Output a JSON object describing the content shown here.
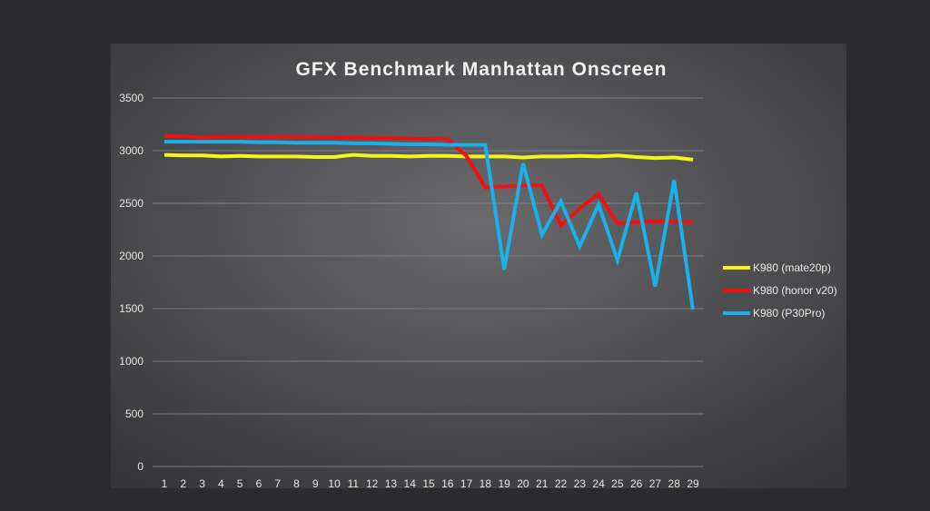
{
  "chart_data": {
    "type": "line",
    "title": "GFX Benchmark Manhattan Onscreen",
    "xlabel": "",
    "ylabel": "",
    "x": [
      1,
      2,
      3,
      4,
      5,
      6,
      7,
      8,
      9,
      10,
      11,
      12,
      13,
      14,
      15,
      16,
      17,
      18,
      19,
      20,
      21,
      22,
      23,
      24,
      25,
      26,
      27,
      28,
      29
    ],
    "ylim": [
      0,
      3500
    ],
    "yticks": [
      0,
      500,
      1000,
      1500,
      2000,
      2500,
      3000,
      3500
    ],
    "grid": true,
    "legend_position": "right",
    "series": [
      {
        "name": "K980 (mate20p)",
        "color": "#f5f51a",
        "values": [
          2960,
          2955,
          2955,
          2945,
          2950,
          2945,
          2945,
          2945,
          2940,
          2940,
          2960,
          2950,
          2950,
          2945,
          2950,
          2950,
          2945,
          2945,
          2945,
          2935,
          2945,
          2945,
          2950,
          2945,
          2955,
          2940,
          2930,
          2935,
          2915
        ]
      },
      {
        "name": "K980 (honor v20)",
        "color": "#ee1111",
        "values": [
          3140,
          3135,
          3125,
          3130,
          3130,
          3130,
          3130,
          3130,
          3130,
          3125,
          3125,
          3120,
          3120,
          3115,
          3110,
          3110,
          2950,
          2650,
          2660,
          2670,
          2670,
          2290,
          2450,
          2590,
          2310,
          2320,
          2330,
          2325,
          2320
        ]
      },
      {
        "name": "K980 (P30Pro)",
        "color": "#1ab0ea",
        "values": [
          3085,
          3085,
          3085,
          3085,
          3085,
          3080,
          3080,
          3075,
          3075,
          3075,
          3070,
          3070,
          3065,
          3060,
          3060,
          3055,
          3055,
          3055,
          1870,
          2880,
          2200,
          2520,
          2090,
          2490,
          1960,
          2600,
          1710,
          2720,
          1490
        ]
      }
    ]
  }
}
